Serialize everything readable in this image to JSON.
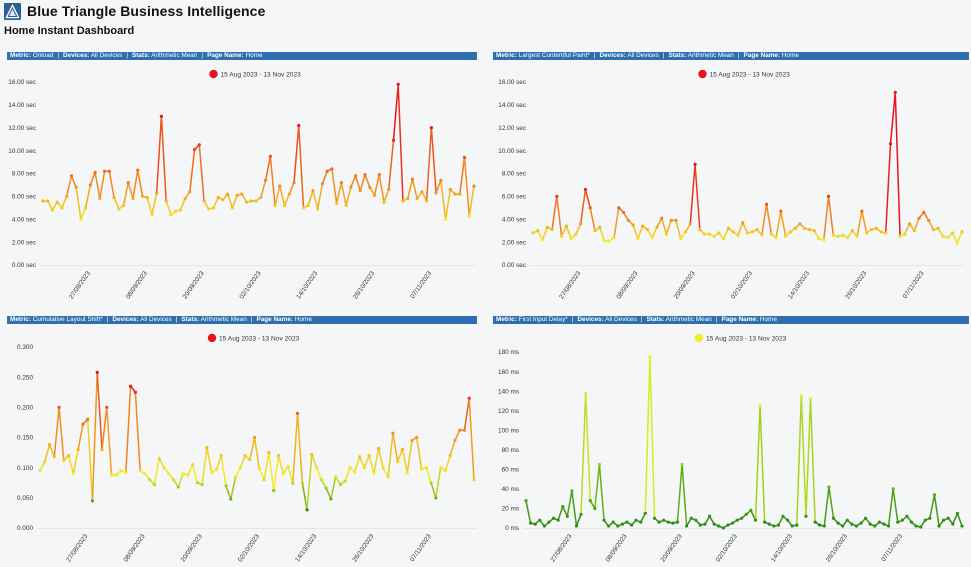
{
  "app": {
    "title": "Blue Triangle Business Intelligence",
    "dashboard_title": "Home Instant Dashboard"
  },
  "header_labels": {
    "metric": "Metric:",
    "devices": "Devices:",
    "stats": "Stats:",
    "page_name": "Page Name:"
  },
  "colors": {
    "header_bg": "#2f6fad",
    "gradient_red": "#e8141c",
    "gradient_orange": "#f08a1e",
    "gradient_yellow": "#f2ee22",
    "gradient_green": "#2e8c14"
  },
  "chart_data": [
    {
      "type": "line",
      "metric": "Onload",
      "devices": "All Devices",
      "stats": "Arithmetic Mean",
      "page_name": "Home",
      "legend": "15 Aug 2023 - 13 Nov 2023",
      "legend_color": "#e8141c",
      "y_unit": " sec",
      "y_decimals": 2,
      "ylim": [
        0,
        16
      ],
      "y_ticks": [
        0,
        2,
        4,
        6,
        8,
        10,
        12,
        14,
        16
      ],
      "x_ticks": [
        "27/08/2023",
        "08/09/2023",
        "20/09/2023",
        "02/10/2023",
        "14/10/2023",
        "26/10/2023",
        "07/11/2023"
      ],
      "x_tick_idx": [
        10,
        22,
        34,
        46,
        58,
        70,
        82
      ],
      "color_stops": [
        [
          4,
          "#f2ee22"
        ],
        [
          7,
          "#f08a1e"
        ],
        [
          12,
          "#e8141c"
        ]
      ],
      "values": [
        5.6,
        5.6,
        4.8,
        5.5,
        5.0,
        6.0,
        7.8,
        6.8,
        4.0,
        5.0,
        7.0,
        8.1,
        5.8,
        8.2,
        8.2,
        5.9,
        4.9,
        5.2,
        7.2,
        5.8,
        8.3,
        6.0,
        5.9,
        4.4,
        6.3,
        13.0,
        5.6,
        4.4,
        4.7,
        4.8,
        5.8,
        6.4,
        10.1,
        10.5,
        5.6,
        4.9,
        5.0,
        5.9,
        5.7,
        6.2,
        5.0,
        6.1,
        6.2,
        5.5,
        5.6,
        5.6,
        5.9,
        7.4,
        9.5,
        5.2,
        6.9,
        5.2,
        6.2,
        7.2,
        12.2,
        5.0,
        5.2,
        6.5,
        4.9,
        7.1,
        8.2,
        8.4,
        5.4,
        7.2,
        5.2,
        6.8,
        7.8,
        6.5,
        7.9,
        6.8,
        6.1,
        7.9,
        5.5,
        6.6,
        10.9,
        15.8,
        5.6,
        5.8,
        7.5,
        5.8,
        6.4,
        5.6,
        12.0,
        6.3,
        7.4,
        4.0,
        6.6,
        6.2,
        6.2,
        9.4,
        4.3,
        6.9
      ]
    },
    {
      "type": "line",
      "metric": "Largest Contentful Paint*",
      "devices": "All Devices",
      "stats": "Arithmetic Mean",
      "page_name": "Home",
      "legend": "15 Aug 2023 - 13 Nov 2023",
      "legend_color": "#e8141c",
      "y_unit": " sec",
      "y_decimals": 2,
      "ylim": [
        0,
        16
      ],
      "y_ticks": [
        0,
        2,
        4,
        6,
        8,
        10,
        12,
        14,
        16
      ],
      "x_ticks": [
        "27/08/2023",
        "08/09/2023",
        "20/09/2023",
        "02/10/2023",
        "14/10/2023",
        "26/10/2023",
        "07/11/2023"
      ],
      "x_tick_idx": [
        10,
        22,
        34,
        46,
        58,
        70,
        82
      ],
      "color_stops": [
        [
          2.2,
          "#f2ee22"
        ],
        [
          4,
          "#f08a1e"
        ],
        [
          7,
          "#e8141c"
        ]
      ],
      "values": [
        2.8,
        3.0,
        2.2,
        3.3,
        3.1,
        6.0,
        2.5,
        3.4,
        2.3,
        2.7,
        3.6,
        6.6,
        5.0,
        3.0,
        3.3,
        2.1,
        2.1,
        2.4,
        5.0,
        4.6,
        3.9,
        3.5,
        2.3,
        3.4,
        3.1,
        2.4,
        3.3,
        4.1,
        2.7,
        3.9,
        3.9,
        2.3,
        2.9,
        3.6,
        8.8,
        3.1,
        2.7,
        2.7,
        2.5,
        2.8,
        2.3,
        3.2,
        2.9,
        2.6,
        3.7,
        2.8,
        2.9,
        3.1,
        2.6,
        5.3,
        2.7,
        2.4,
        4.7,
        2.5,
        2.9,
        3.2,
        3.6,
        3.2,
        3.1,
        3.0,
        2.3,
        2.2,
        6.0,
        2.6,
        2.5,
        2.6,
        2.4,
        3.0,
        2.5,
        4.7,
        2.8,
        3.1,
        3.2,
        2.9,
        2.8,
        10.6,
        15.1,
        2.5,
        2.7,
        3.6,
        3.0,
        4.1,
        4.6,
        3.9,
        3.1,
        3.2,
        2.5,
        2.4,
        2.8,
        1.9,
        2.9
      ]
    },
    {
      "type": "line",
      "metric": "Cumulative Layout Shift*",
      "devices": "All Devices",
      "stats": "Arithmetic Mean",
      "page_name": "Home",
      "legend": "15 Aug 2023 - 13 Nov 2023",
      "legend_color": "#e8141c",
      "y_unit": "",
      "y_decimals": 3,
      "ylim": [
        0,
        0.3
      ],
      "y_ticks": [
        0,
        0.05,
        0.1,
        0.15,
        0.2,
        0.25,
        0.3
      ],
      "x_ticks": [
        "27/08/2023",
        "08/09/2023",
        "20/09/2023",
        "02/10/2023",
        "14/10/2023",
        "26/10/2023",
        "07/11/2023"
      ],
      "x_tick_idx": [
        10,
        22,
        34,
        46,
        58,
        70,
        82
      ],
      "color_stops": [
        [
          0.03,
          "#2e8c14"
        ],
        [
          0.09,
          "#f2ee22"
        ],
        [
          0.16,
          "#f08a1e"
        ],
        [
          0.24,
          "#e8141c"
        ]
      ],
      "values": [
        0.095,
        0.11,
        0.138,
        0.118,
        0.2,
        0.112,
        0.12,
        0.09,
        0.13,
        0.172,
        0.18,
        0.045,
        0.258,
        0.13,
        0.2,
        0.088,
        0.088,
        0.095,
        0.092,
        0.235,
        0.225,
        0.095,
        0.09,
        0.08,
        0.072,
        0.115,
        0.1,
        0.09,
        0.08,
        0.068,
        0.09,
        0.088,
        0.105,
        0.075,
        0.072,
        0.133,
        0.092,
        0.097,
        0.12,
        0.07,
        0.048,
        0.084,
        0.1,
        0.12,
        0.113,
        0.15,
        0.098,
        0.08,
        0.125,
        0.062,
        0.12,
        0.09,
        0.102,
        0.074,
        0.19,
        0.075,
        0.03,
        0.122,
        0.1,
        0.08,
        0.066,
        0.048,
        0.085,
        0.072,
        0.078,
        0.1,
        0.093,
        0.118,
        0.1,
        0.12,
        0.09,
        0.132,
        0.098,
        0.085,
        0.157,
        0.11,
        0.13,
        0.092,
        0.145,
        0.15,
        0.098,
        0.1,
        0.075,
        0.05,
        0.1,
        0.095,
        0.12,
        0.145,
        0.162,
        0.162,
        0.215,
        0.08
      ]
    },
    {
      "type": "line",
      "metric": "First Input Delay*",
      "devices": "All Devices",
      "stats": "Arithmetic Mean",
      "page_name": "Home",
      "legend": "15 Aug 2023 - 13 Nov 2023",
      "legend_color": "#f2ee22",
      "y_unit": " ms",
      "y_decimals": 0,
      "ylim": [
        0,
        180
      ],
      "y_ticks": [
        0,
        20,
        40,
        60,
        80,
        100,
        120,
        140,
        160,
        180
      ],
      "x_ticks": [
        "27/08/2023",
        "08/09/2023",
        "20/09/2023",
        "02/10/2023",
        "14/10/2023",
        "26/10/2023",
        "07/11/2023"
      ],
      "x_tick_idx": [
        10,
        22,
        34,
        46,
        58,
        70,
        82
      ],
      "color_stops": [
        [
          5,
          "#2e8c14"
        ],
        [
          35,
          "#5cae16"
        ],
        [
          90,
          "#d6ec1e"
        ],
        [
          170,
          "#f2ee22"
        ]
      ],
      "values": [
        28,
        5,
        4,
        8,
        2,
        6,
        10,
        8,
        22,
        12,
        38,
        2,
        14,
        138,
        28,
        20,
        65,
        8,
        2,
        6,
        2,
        4,
        6,
        3,
        8,
        6,
        15,
        175,
        10,
        6,
        8,
        6,
        5,
        6,
        65,
        2,
        10,
        8,
        3,
        4,
        12,
        4,
        2,
        0,
        3,
        5,
        8,
        10,
        14,
        18,
        8,
        125,
        6,
        4,
        2,
        3,
        12,
        8,
        2,
        3,
        135,
        12,
        132,
        6,
        3,
        2,
        42,
        10,
        5,
        2,
        8,
        4,
        2,
        5,
        10,
        4,
        2,
        6,
        4,
        2,
        40,
        6,
        8,
        12,
        6,
        2,
        1,
        8,
        10,
        34,
        2,
        8,
        10,
        4,
        15,
        2
      ]
    }
  ]
}
